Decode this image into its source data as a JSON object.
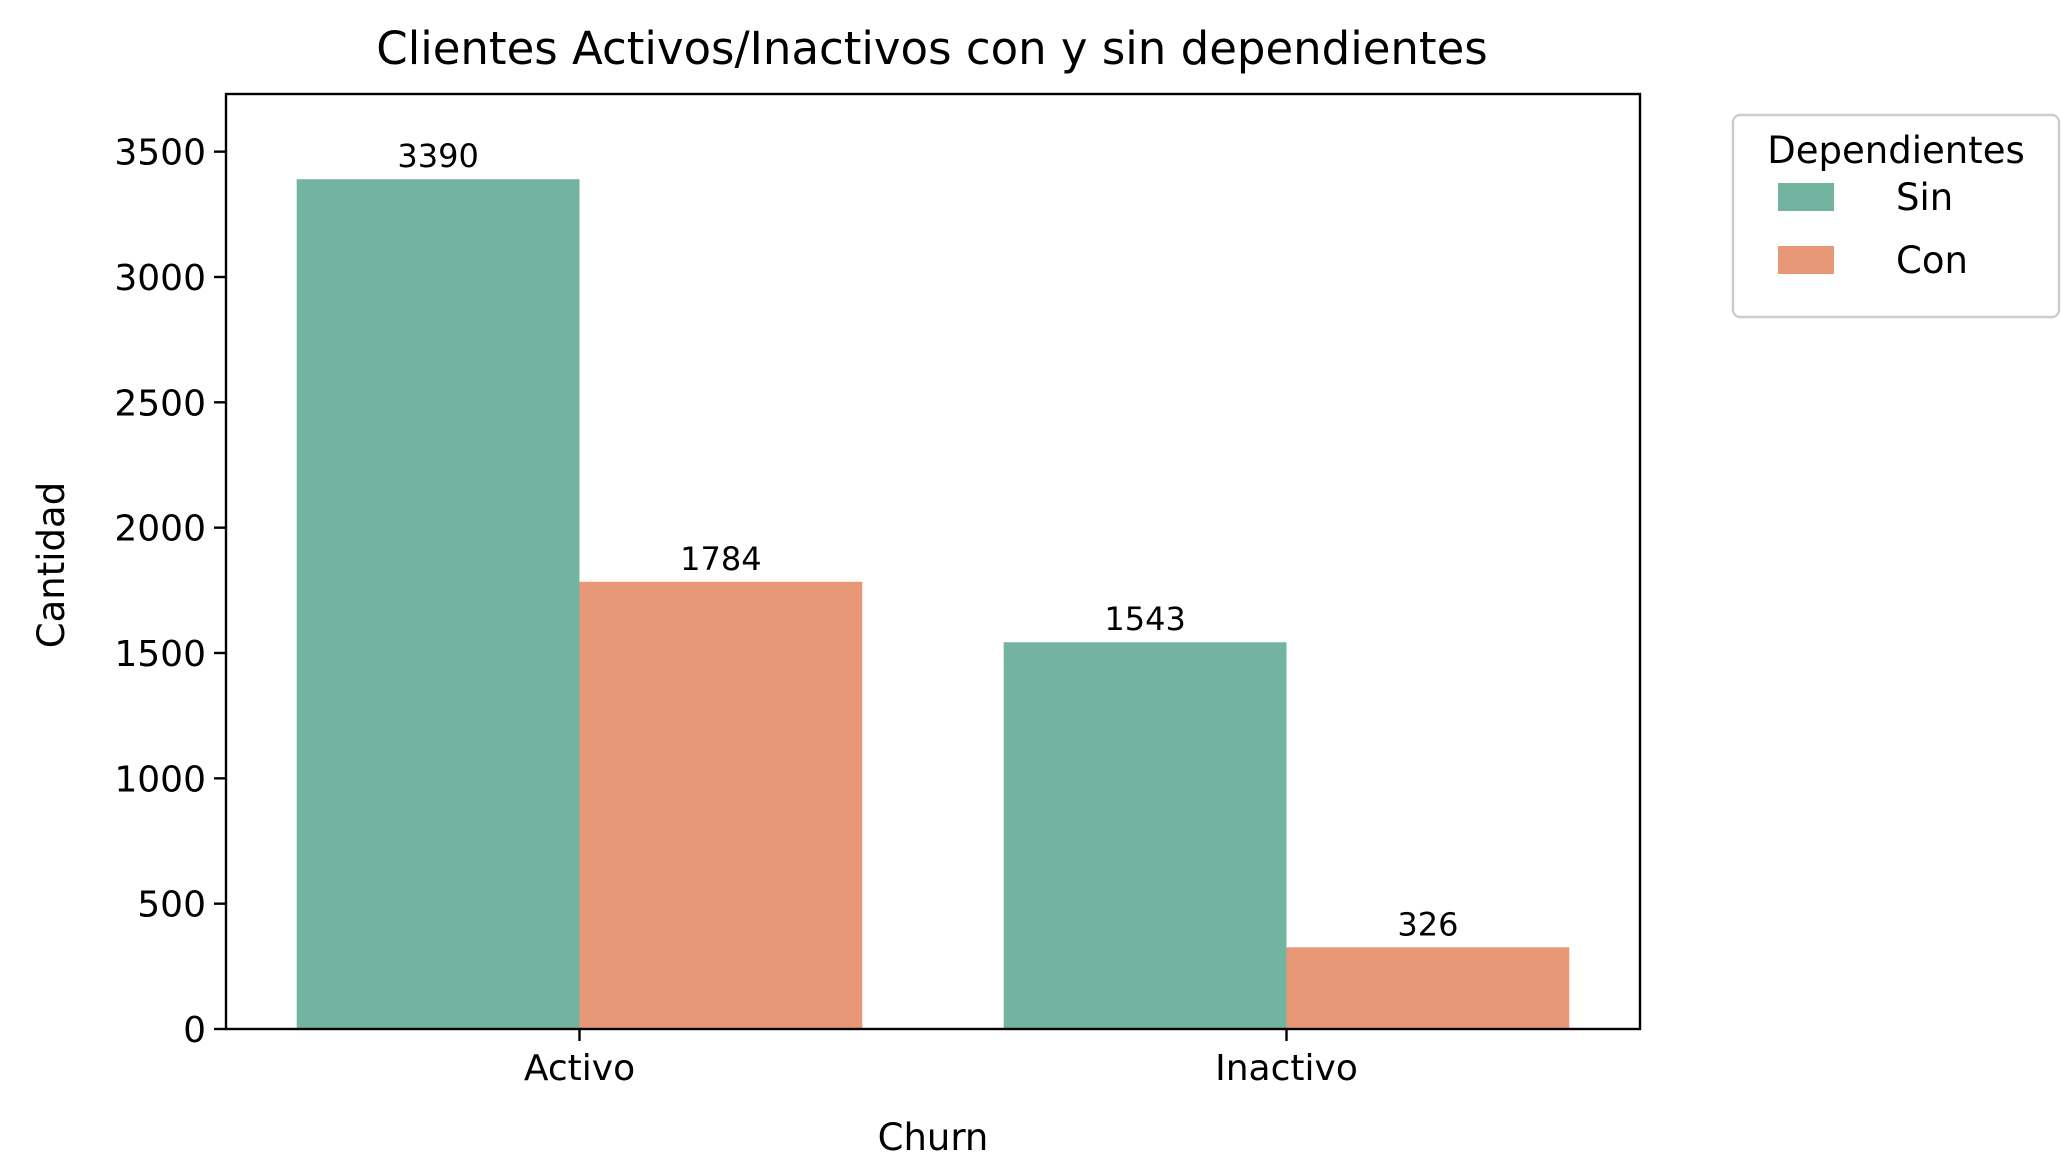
{
  "chart_data": {
    "type": "bar",
    "title": "Clientes Activos/Inactivos con y sin dependientes",
    "xlabel": "Churn",
    "ylabel": "Cantidad",
    "categories": [
      "Activo",
      "Inactivo"
    ],
    "series": [
      {
        "name": "Sin",
        "values": [
          3390,
          1543
        ],
        "color": "#73b4a0"
      },
      {
        "name": "Con",
        "values": [
          1784,
          326
        ],
        "color": "#e89876"
      }
    ],
    "ylim": [
      0,
      3730
    ],
    "yticks": [
      0,
      500,
      1000,
      1500,
      2000,
      2500,
      3000,
      3500
    ],
    "grid": false,
    "legend": {
      "title": "Dependientes",
      "placement": "outside-top-right"
    }
  }
}
